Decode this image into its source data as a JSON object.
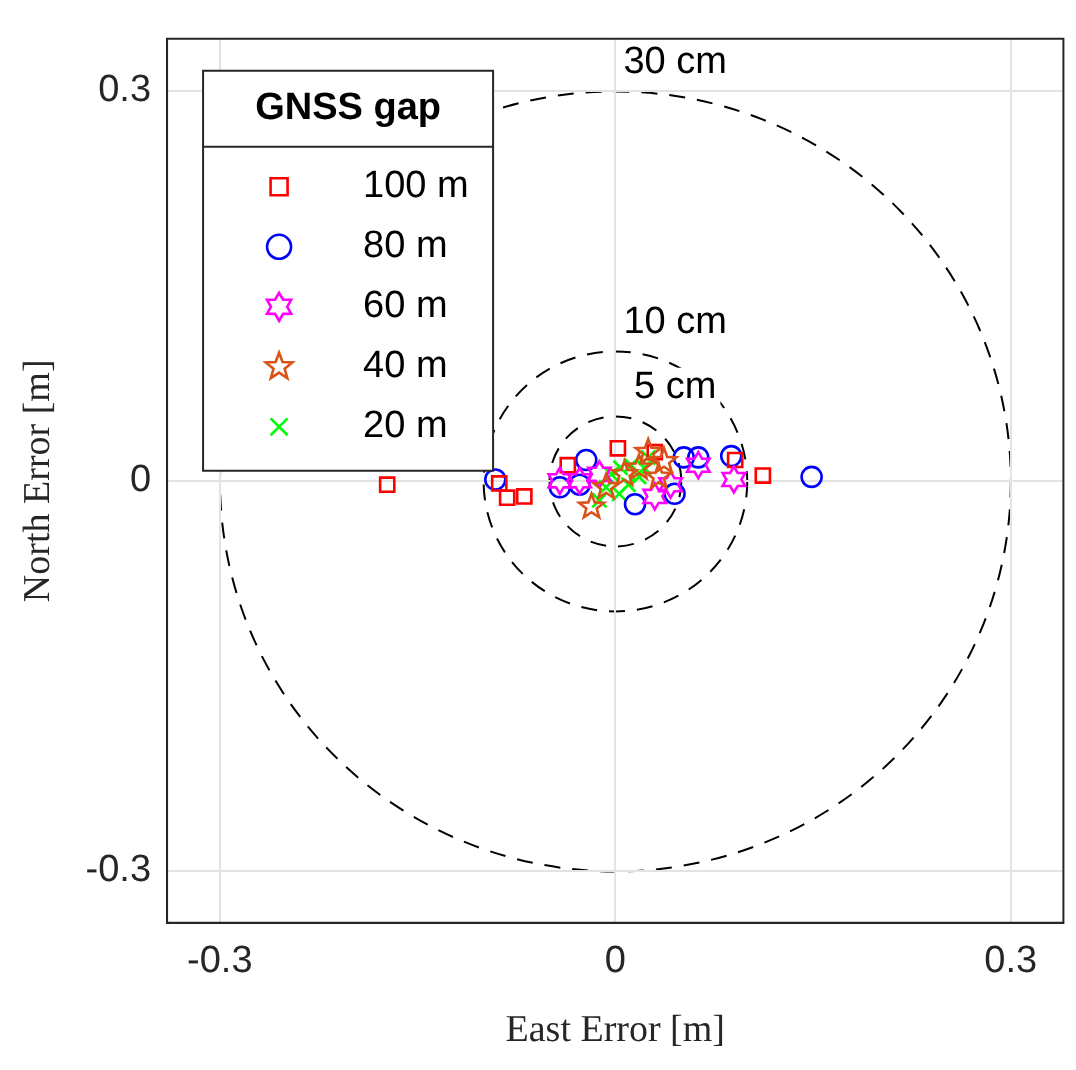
{
  "chart_data": {
    "type": "scatter",
    "xlabel": "East Error [m]",
    "ylabel": "North Error [m]",
    "xlim": [
      -0.34,
      0.34
    ],
    "ylim": [
      -0.34,
      0.34
    ],
    "xticks": [
      -0.3,
      0,
      0.3
    ],
    "yticks": [
      -0.3,
      0,
      0.3
    ],
    "grid": true,
    "legend": "top left",
    "legend_title": "GNSS gap",
    "annotations": [
      "30 cm",
      "10 cm",
      "5 cm"
    ],
    "series": [
      {
        "name": "100 m",
        "color": "#ff0000",
        "marker": "square",
        "x": [
          -0.173,
          -0.088,
          -0.082,
          -0.069,
          0.002,
          -0.036,
          0.091,
          0.112,
          0.03
        ],
        "values": [
          -0.003,
          -0.002,
          -0.013,
          -0.012,
          0.025,
          0.012,
          0.016,
          0.004,
          0.022
        ]
      },
      {
        "name": "80 m",
        "color": "#0000ff",
        "marker": "circle",
        "x": [
          -0.091,
          -0.022,
          0.052,
          0.063,
          0.088,
          -0.042,
          -0.027,
          0.015,
          0.045,
          0.149
        ],
        "values": [
          0.001,
          0.016,
          0.018,
          0.018,
          0.019,
          -0.005,
          -0.003,
          -0.018,
          -0.01,
          0.003
        ]
      },
      {
        "name": "60 m",
        "color": "#ff00ff",
        "x": [
          -0.042,
          -0.027,
          0.03,
          0.063,
          0.09,
          0.042,
          -0.012
        ],
        "values": [
          0,
          0,
          -0.012,
          0.012,
          0.001,
          -0.003,
          0.005
        ]
      },
      {
        "name": "40 m",
        "color": "#d95319",
        "marker": "star",
        "x": [
          0.025,
          0.037,
          -0.018,
          -0.007,
          0.018,
          0.007,
          0.033
        ],
        "values": [
          0.022,
          0.015,
          -0.02,
          -0.005,
          0.01,
          0.005,
          0.003
        ]
      },
      {
        "name": "20 m",
        "color": "#00ff00",
        "marker": "cross",
        "x": [
          -0.003,
          0.004,
          0.012,
          0.018,
          -0.007,
          0.003,
          0.022,
          0.01,
          -0.012,
          0.025
        ],
        "values": [
          0.005,
          0.01,
          0.012,
          0.003,
          -0.005,
          -0.01,
          0.01,
          -0.003,
          -0.015,
          0.018
        ]
      }
    ]
  }
}
